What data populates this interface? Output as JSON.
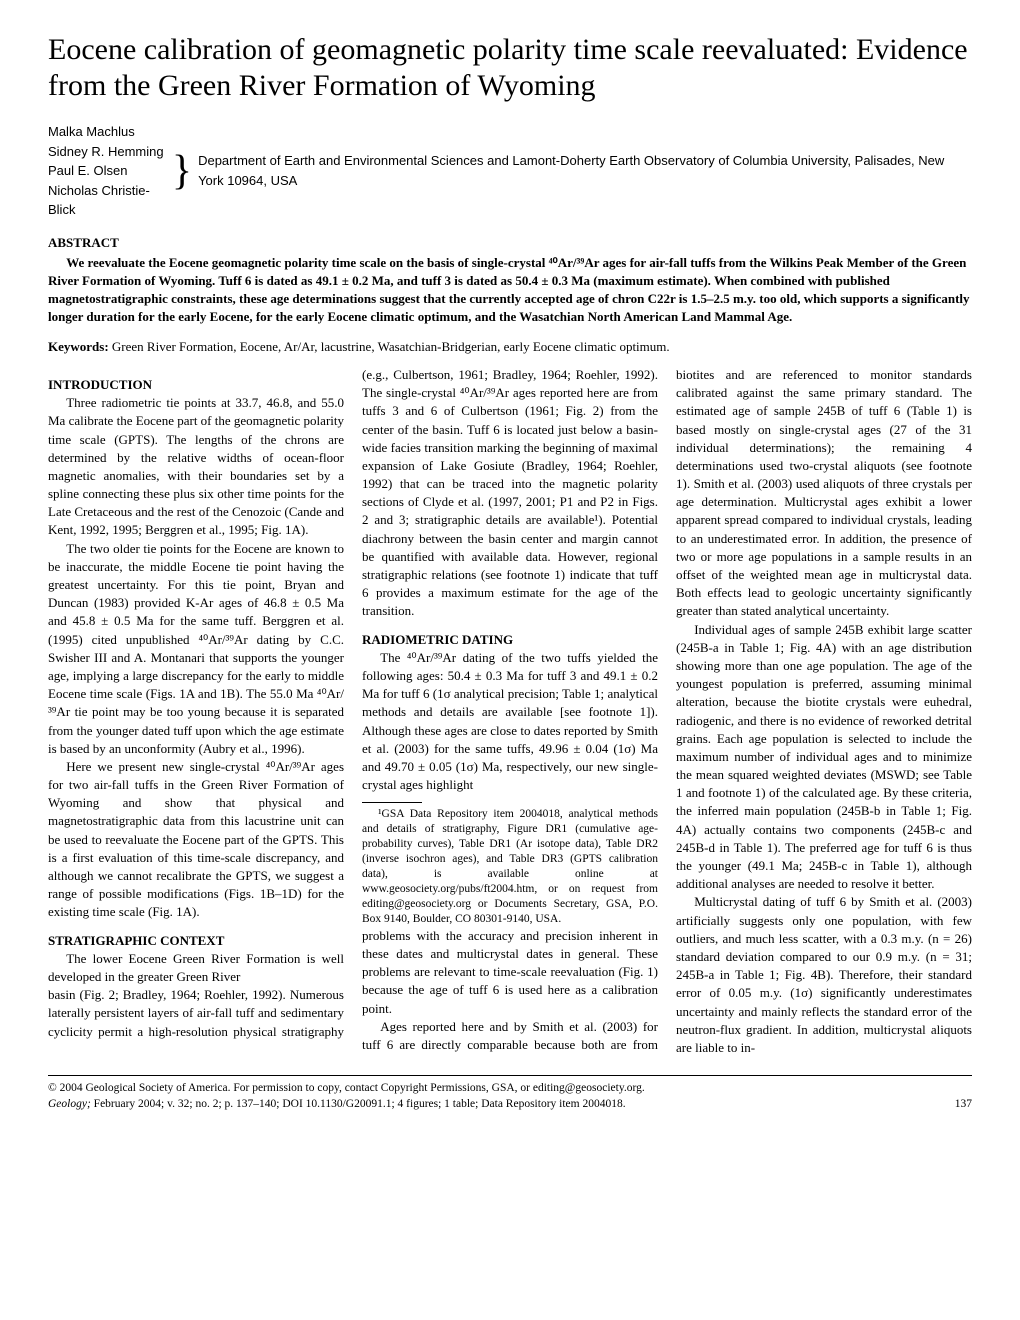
{
  "title": "Eocene calibration of geomagnetic polarity time scale reevaluated: Evidence from the Green River Formation of Wyoming",
  "authors": [
    "Malka Machlus",
    "Sidney R. Hemming",
    "Paul E. Olsen",
    "Nicholas Christie-Blick"
  ],
  "affiliation": "Department of Earth and Environmental Sciences and Lamont-Doherty Earth Observatory of Columbia University, Palisades, New York 10964, USA",
  "abstract_head": "ABSTRACT",
  "abstract_body": "We reevaluate the Eocene geomagnetic polarity time scale on the basis of single-crystal ⁴⁰Ar/³⁹Ar ages for air-fall tuffs from the Wilkins Peak Member of the Green River Formation of Wyoming. Tuff 6 is dated as 49.1 ± 0.2 Ma, and tuff 3 is dated as 50.4 ± 0.3 Ma (maximum estimate). When combined with published magnetostratigraphic constraints, these age determinations suggest that the currently accepted age of chron C22r is 1.5–2.5 m.y. too old, which supports a significantly longer duration for the early Eocene, for the early Eocene climatic optimum, and the Wasatchian North American Land Mammal Age.",
  "keywords_label": "Keywords:",
  "keywords": " Green River Formation, Eocene, Ar/Ar, lacustrine, Wasatchian-Bridgerian, early Eocene climatic optimum.",
  "intro_head": "INTRODUCTION",
  "intro_p1": "Three radiometric tie points at 33.7, 46.8, and 55.0 Ma calibrate the Eocene part of the geomagnetic polarity time scale (GPTS). The lengths of the chrons are determined by the relative widths of ocean-floor magnetic anomalies, with their boundaries set by a spline connecting these plus six other time points for the Late Cretaceous and the rest of the Cenozoic (Cande and Kent, 1992, 1995; Berggren et al., 1995; Fig. 1A).",
  "intro_p2": "The two older tie points for the Eocene are known to be inaccurate, the middle Eocene tie point having the greatest uncertainty. For this tie point, Bryan and Duncan (1983) provided K-Ar ages of 46.8 ± 0.5 Ma and 45.8 ± 0.5 Ma for the same tuff. Berggren et al. (1995) cited unpublished ⁴⁰Ar/³⁹Ar dating by C.C. Swisher III and A. Montanari that supports the younger age, implying a large discrepancy for the early to middle Eocene time scale (Figs. 1A and 1B). The 55.0 Ma ⁴⁰Ar/³⁹Ar tie point may be too young because it is separated from the younger dated tuff upon which the age estimate is based by an unconformity (Aubry et al., 1996).",
  "intro_p3": "Here we present new single-crystal ⁴⁰Ar/³⁹Ar ages for two air-fall tuffs in the Green River Formation of Wyoming and show that physical and magnetostratigraphic data from this lacustrine unit can be used to reevaluate the Eocene part of the GPTS. This is a first evaluation of this time-scale discrepancy, and although we cannot recalibrate the GPTS, we suggest a range of possible modifications (Figs. 1B–1D) for the existing time scale (Fig. 1A).",
  "strat_head": "STRATIGRAPHIC CONTEXT",
  "strat_p1a": "The lower Eocene Green River Formation is well developed in the greater Green River ",
  "strat_p1b": "basin (Fig. 2; Bradley, 1964; Roehler, 1992). Numerous laterally persistent layers of air-fall tuff and sedimentary cyclicity permit a high-resolution physical stratigraphy (e.g., Culbertson, 1961; Bradley, 1964; Roehler, 1992). The single-crystal ⁴⁰Ar/³⁹Ar ages reported here are from tuffs 3 and 6 of Culbertson (1961; Fig. 2) from the center of the basin. Tuff 6 is located just below a basin-wide facies transition marking the beginning of maximal expansion of Lake Gosiute (Bradley, 1964; Roehler, 1992) that can be traced into the magnetic polarity sections of Clyde et al. (1997, 2001; P1 and P2 in Figs. 2 and 3; stratigraphic details are available¹). Potential diachrony between the basin center and margin cannot be quantified with available data. However, regional stratigraphic relations (see footnote 1) indicate that tuff 6 provides a maximum estimate for the age of the transition.",
  "radio_head": "RADIOMETRIC DATING",
  "radio_p1": "The ⁴⁰Ar/³⁹Ar dating of the two tuffs yielded the following ages: 50.4 ± 0.3 Ma for tuff 3 and 49.1 ± 0.2 Ma for tuff 6 (1σ analytical precision; Table 1; analytical methods and details are available [see footnote 1]). Although these ages are close to dates reported by Smith et al. (2003) for the same tuffs, 49.96 ± 0.04 (1σ) Ma and 49.70 ± 0.05 (1σ) Ma, respectively, our new single-crystal ages highlight",
  "footnote1": "¹GSA Data Repository item 2004018, analytical methods and details of stratigraphy, Figure DR1 (cumulative age-probability curves), Table DR1 (Ar isotope data), Table DR2 (inverse isochron ages), and Table DR3 (GPTS calibration data), is available online at www.geosociety.org/pubs/ft2004.htm, or on request from editing@geosociety.org or Documents Secretary, GSA, P.O. Box 9140, Boulder, CO 80301-9140, USA.",
  "radio_p2": "problems with the accuracy and precision inherent in these dates and multicrystal dates in general. These problems are relevant to time-scale reevaluation (Fig. 1) because the age of tuff 6 is used here as a calibration point.",
  "radio_p3": "Ages reported here and by Smith et al. (2003) for tuff 6 are directly comparable because both are from biotites and are referenced to monitor standards calibrated against the same primary standard. The estimated age of sample 245B of tuff 6 (Table 1) is based mostly on single-crystal ages (27 of the 31 individual determinations); the remaining 4 determinations used two-crystal aliquots (see footnote 1). Smith et al. (2003) used aliquots of three crystals per age determination. Multicrystal ages exhibit a lower apparent spread compared to individual crystals, leading to an underestimated error. In addition, the presence of two or more age populations in a sample results in an offset of the weighted mean age in multicrystal data. Both effects lead to geologic uncertainty significantly greater than stated analytical uncertainty.",
  "radio_p4": "Individual ages of sample 245B exhibit large scatter (245B-a in Table 1; Fig. 4A) with an age distribution showing more than one age population. The age of the youngest population is preferred, assuming minimal alteration, because the biotite crystals were euhedral, radiogenic, and there is no evidence of reworked detrital grains. Each age population is selected to include the maximum number of individual ages and to minimize the mean squared weighted deviates (MSWD; see Table 1 and footnote 1) of the calculated age. By these criteria, the inferred main population (245B-b in Table 1; Fig. 4A) actually contains two components (245B-c and 245B-d in Table 1). The preferred age for tuff 6 is thus the younger (49.1 Ma; 245B-c in Table 1), although additional analyses are needed to resolve it better.",
  "radio_p5": "Multicrystal dating of tuff 6 by Smith et al. (2003) artificially suggests only one population, with few outliers, and much less scatter, with a 0.3 m.y. (n = 26) standard deviation compared to our 0.9 m.y. (n = 31; 245B-a in Table 1; Fig. 4B). Therefore, their standard error of 0.05 m.y. (1σ) significantly underestimates uncertainty and mainly reflects the standard error of the neutron-flux gradient. In addition, multicrystal aliquots are liable to in-",
  "copyright": "© 2004 Geological Society of America. For permission to copy, contact Copyright Permissions, GSA, or editing@geosociety.org.",
  "citation_journal": "Geology;",
  "citation_rest": " February 2004; v. 32; no. 2; p. 137–140; DOI 10.1130/G20091.1; 4 figures; 1 table; Data Repository item 2004018.",
  "page_num": "137"
}
